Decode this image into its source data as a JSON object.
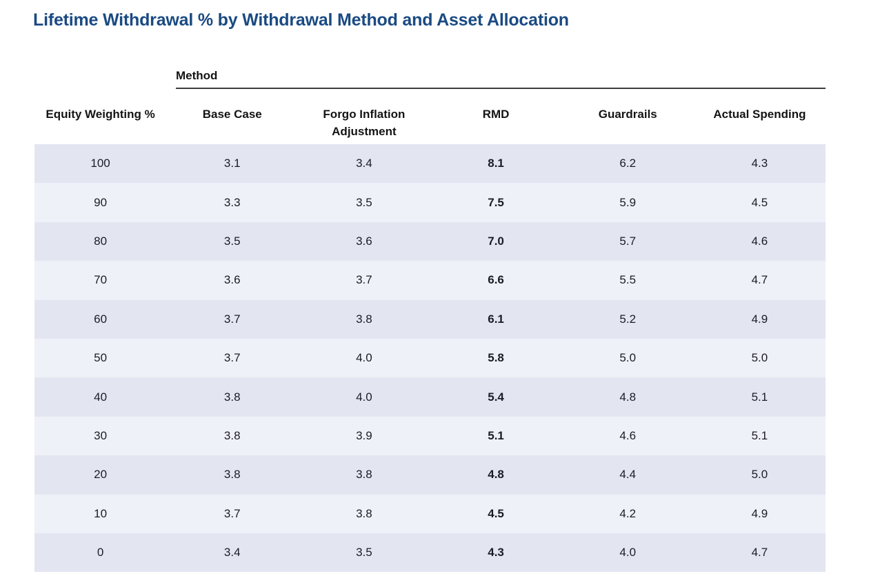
{
  "title": "Lifetime Withdrawal % by Withdrawal Method and Asset Allocation",
  "colors": {
    "title": "#1a4a82",
    "row_dark": "#e3e6f1",
    "row_light": "#eff1f8",
    "text": "#1b1b27",
    "spanner_rule": "#3c3c3c"
  },
  "table": {
    "spanner_label": "Method",
    "columns": [
      "Equity Weighting %",
      "Base Case",
      "Forgo Inflation Adjustment",
      "RMD",
      "Guardrails",
      "Actual Spending"
    ],
    "bold_column": "RMD",
    "rows": [
      {
        "equity_weighting": "100",
        "values": [
          "3.1",
          "3.4",
          "8.1",
          "6.2",
          "4.3"
        ]
      },
      {
        "equity_weighting": "90",
        "values": [
          "3.3",
          "3.5",
          "7.5",
          "5.9",
          "4.5"
        ]
      },
      {
        "equity_weighting": "80",
        "values": [
          "3.5",
          "3.6",
          "7.0",
          "5.7",
          "4.6"
        ]
      },
      {
        "equity_weighting": "70",
        "values": [
          "3.6",
          "3.7",
          "6.6",
          "5.5",
          "4.7"
        ]
      },
      {
        "equity_weighting": "60",
        "values": [
          "3.7",
          "3.8",
          "6.1",
          "5.2",
          "4.9"
        ]
      },
      {
        "equity_weighting": "50",
        "values": [
          "3.7",
          "4.0",
          "5.8",
          "5.0",
          "5.0"
        ]
      },
      {
        "equity_weighting": "40",
        "values": [
          "3.8",
          "4.0",
          "5.4",
          "4.8",
          "5.1"
        ]
      },
      {
        "equity_weighting": "30",
        "values": [
          "3.8",
          "3.9",
          "5.1",
          "4.6",
          "5.1"
        ]
      },
      {
        "equity_weighting": "20",
        "values": [
          "3.8",
          "3.8",
          "4.8",
          "4.4",
          "5.0"
        ]
      },
      {
        "equity_weighting": "10",
        "values": [
          "3.7",
          "3.8",
          "4.5",
          "4.2",
          "4.9"
        ]
      },
      {
        "equity_weighting": "0",
        "values": [
          "3.4",
          "3.5",
          "4.3",
          "4.0",
          "4.7"
        ]
      }
    ]
  },
  "chart_data": {
    "type": "table",
    "title": "Lifetime Withdrawal % by Withdrawal Method and Asset Allocation",
    "group_header": "Method",
    "columns": [
      "Equity Weighting %",
      "Base Case",
      "Forgo Inflation Adjustment",
      "RMD",
      "Guardrails",
      "Actual Spending"
    ],
    "rows": [
      [
        100,
        3.1,
        3.4,
        8.1,
        6.2,
        4.3
      ],
      [
        90,
        3.3,
        3.5,
        7.5,
        5.9,
        4.5
      ],
      [
        80,
        3.5,
        3.6,
        7.0,
        5.7,
        4.6
      ],
      [
        70,
        3.6,
        3.7,
        6.6,
        5.5,
        4.7
      ],
      [
        60,
        3.7,
        3.8,
        6.1,
        5.2,
        4.9
      ],
      [
        50,
        3.7,
        4.0,
        5.8,
        5.0,
        5.0
      ],
      [
        40,
        3.8,
        4.0,
        5.4,
        4.8,
        5.1
      ],
      [
        30,
        3.8,
        3.9,
        5.1,
        4.6,
        5.1
      ],
      [
        20,
        3.8,
        3.8,
        4.8,
        4.4,
        5.0
      ],
      [
        10,
        3.7,
        3.8,
        4.5,
        4.2,
        4.9
      ],
      [
        0,
        3.4,
        3.5,
        4.3,
        4.0,
        4.7
      ]
    ],
    "bold_column": "RMD",
    "layout_hints": "alternating lavender row shading; RMD column bold; 'Method' spanner ruled line over the five method columns"
  }
}
